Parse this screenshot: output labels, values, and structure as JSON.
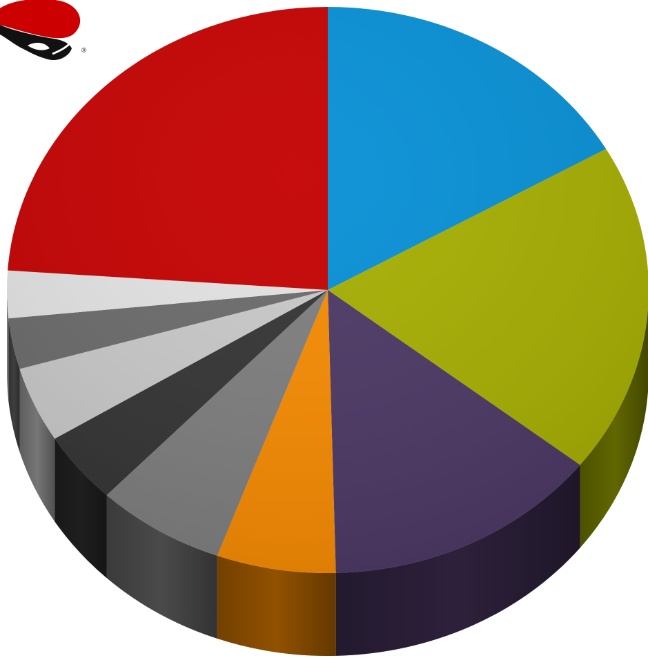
{
  "logo": {
    "name": "red-hat-logo",
    "mark": "®"
  },
  "chart_data": {
    "type": "pie",
    "style": "3d",
    "title": "",
    "legend": "none",
    "start": "top",
    "direction": "clockwise",
    "slices": [
      {
        "color": "#058FD5",
        "value": 16.7
      },
      {
        "color": "#A5AE00",
        "value": 18.9
      },
      {
        "color": "#4B3764",
        "value": 14.0
      },
      {
        "color": "#F68A00",
        "value": 6.0
      },
      {
        "color": "#7D7D7D",
        "value": 6.5
      },
      {
        "color": "#333333",
        "value": 4.1
      },
      {
        "color": "#C8C8C8",
        "value": 4.3
      },
      {
        "color": "#6A6A6A",
        "value": 2.9
      },
      {
        "color": "#E2E2E2",
        "value": 2.7
      },
      {
        "color": "#C40000",
        "value": 23.9
      }
    ]
  }
}
